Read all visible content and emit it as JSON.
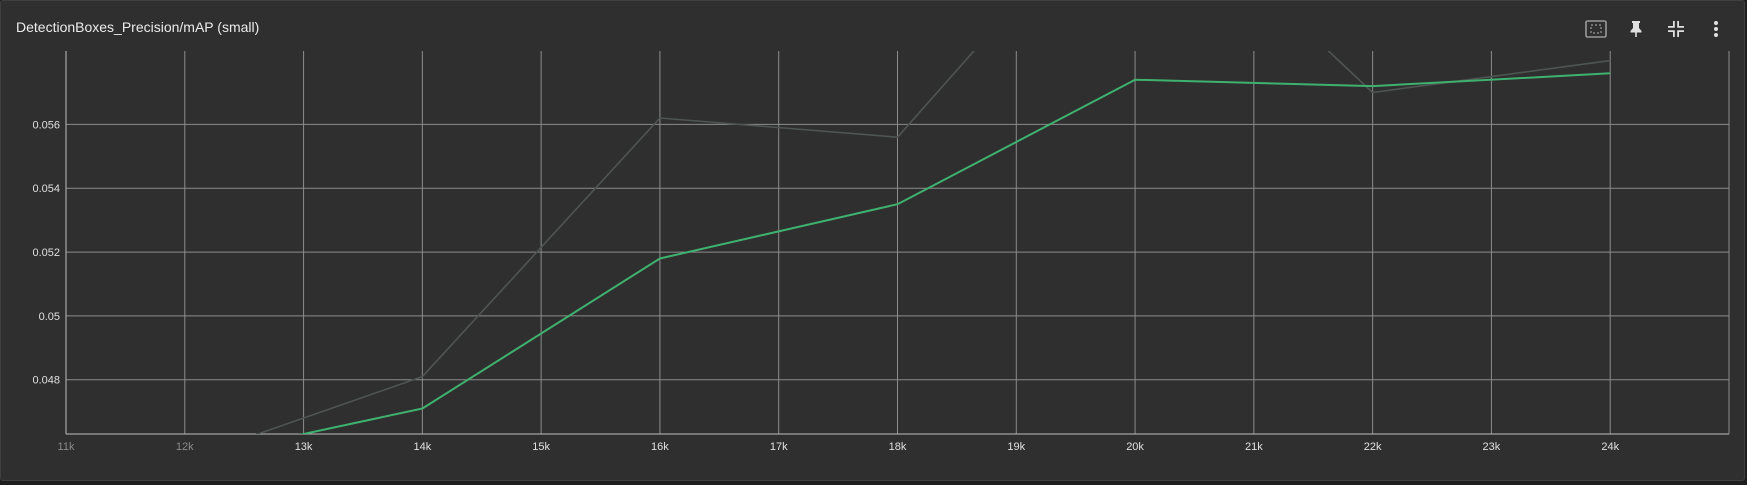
{
  "card": {
    "title": "DetectionBoxes_Precision/mAP (small)",
    "tools": [
      {
        "name": "fit-domain-icon",
        "title": "Fit domain to data"
      },
      {
        "name": "pin-icon",
        "title": "Pin card"
      },
      {
        "name": "collapse-icon",
        "title": "Exit full size"
      },
      {
        "name": "more-vert-icon",
        "title": "More options"
      }
    ]
  },
  "colors": {
    "background": "#2f2f2f",
    "grid": "#8c8c8c",
    "smoothed": "#3fb16f",
    "raw": "#4f5551"
  },
  "chart_data": {
    "type": "line",
    "xlabel": "",
    "ylabel": "",
    "xlim": [
      11000,
      25000
    ],
    "ylim": [
      0.0463,
      0.0583
    ],
    "x_ticks": [
      {
        "value": 11000,
        "label": "11k",
        "faded": true
      },
      {
        "value": 12000,
        "label": "12k",
        "faded": true
      },
      {
        "value": 13000,
        "label": "13k",
        "faded": false
      },
      {
        "value": 14000,
        "label": "14k",
        "faded": false
      },
      {
        "value": 15000,
        "label": "15k",
        "faded": false
      },
      {
        "value": 16000,
        "label": "16k",
        "faded": false
      },
      {
        "value": 17000,
        "label": "17k",
        "faded": false
      },
      {
        "value": 18000,
        "label": "18k",
        "faded": false
      },
      {
        "value": 19000,
        "label": "19k",
        "faded": false
      },
      {
        "value": 20000,
        "label": "20k",
        "faded": false
      },
      {
        "value": 21000,
        "label": "21k",
        "faded": false
      },
      {
        "value": 22000,
        "label": "22k",
        "faded": false
      },
      {
        "value": 23000,
        "label": "23k",
        "faded": false
      },
      {
        "value": 24000,
        "label": "24k",
        "faded": false
      }
    ],
    "y_ticks": [
      {
        "value": 0.048,
        "label": "0.048"
      },
      {
        "value": 0.05,
        "label": "0.05"
      },
      {
        "value": 0.052,
        "label": "0.052"
      },
      {
        "value": 0.054,
        "label": "0.054"
      },
      {
        "value": 0.056,
        "label": "0.056"
      }
    ],
    "series": [
      {
        "role": "raw",
        "points": [
          [
            12000,
            0.0455
          ],
          [
            14000,
            0.0481
          ],
          [
            16000,
            0.0562
          ],
          [
            18000,
            0.0556
          ],
          [
            20000,
            0.064
          ],
          [
            22000,
            0.057
          ],
          [
            24000,
            0.058
          ]
        ]
      },
      {
        "role": "smoothed",
        "points": [
          [
            12000,
            0.0455
          ],
          [
            14000,
            0.0471
          ],
          [
            16000,
            0.0518
          ],
          [
            18000,
            0.0535
          ],
          [
            20000,
            0.0574
          ],
          [
            22000,
            0.0572
          ],
          [
            24000,
            0.0576
          ]
        ]
      }
    ]
  }
}
